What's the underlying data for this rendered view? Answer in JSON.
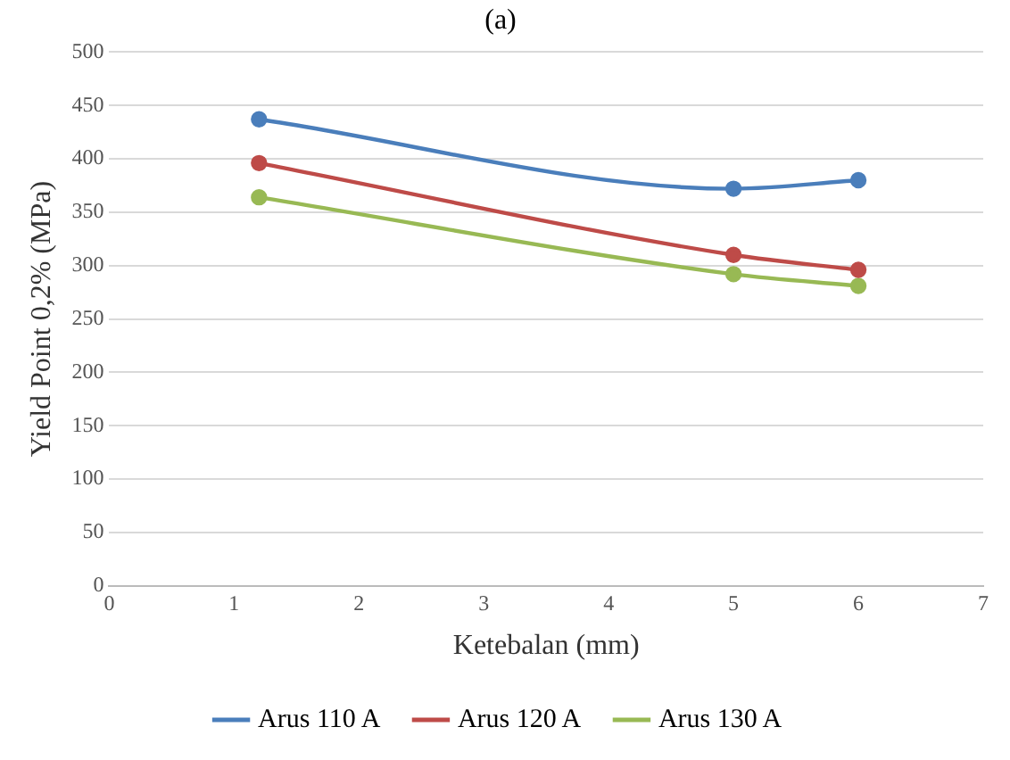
{
  "chart_data": {
    "type": "line",
    "title": "(a)",
    "xlabel": "Ketebalan (mm)",
    "ylabel": "Yield Point 0,2% (MPa)",
    "x": [
      1.2,
      5,
      6
    ],
    "series": [
      {
        "name": "Arus 110 A",
        "color": "#4a7ebb",
        "values": [
          437,
          372,
          380
        ]
      },
      {
        "name": "Arus 120 A",
        "color": "#be4b48",
        "values": [
          396,
          310,
          296
        ]
      },
      {
        "name": "Arus 130 A",
        "color": "#98b954",
        "values": [
          364,
          292,
          281
        ]
      }
    ],
    "xlim": [
      0,
      7
    ],
    "xticks": [
      0,
      1,
      2,
      3,
      4,
      5,
      6,
      7
    ],
    "ylim": [
      0,
      500
    ],
    "yticks": [
      0,
      50,
      100,
      150,
      200,
      250,
      300,
      350,
      400,
      450,
      500
    ],
    "grid": "y",
    "legend": "bottom",
    "marker": "circle",
    "line_style": "solid"
  }
}
